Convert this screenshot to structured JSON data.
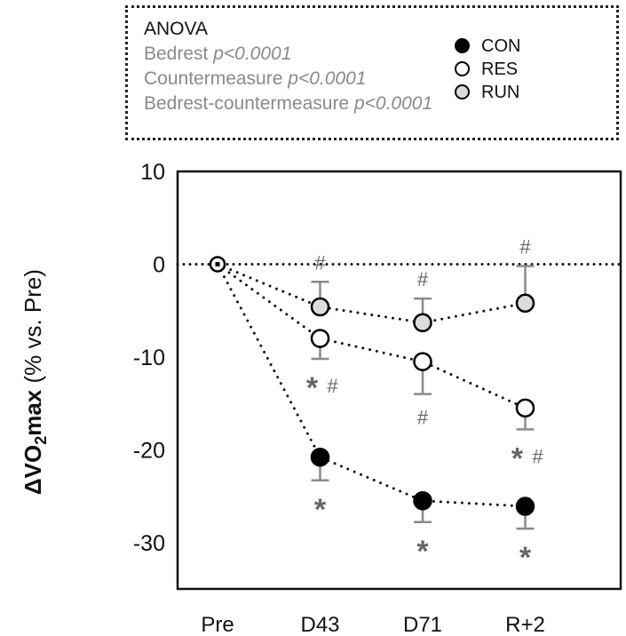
{
  "chart_data": {
    "type": "line",
    "title": "",
    "xlabel": "",
    "ylabel_bold": "ΔVO2max",
    "ylabel_rest": "(% vs. Pre)",
    "ylim": [
      -35,
      10
    ],
    "yticks": [
      10,
      0,
      -10,
      -20,
      -30
    ],
    "categories": [
      "Pre",
      "D43",
      "D71",
      "R+2"
    ],
    "grid": false,
    "reference_line": 0,
    "legend_position": "top-right",
    "series": [
      {
        "name": "CON",
        "fill": "#000000",
        "values": [
          0,
          -20.8,
          -25.5,
          -26.1
        ],
        "err_low": [
          0,
          -23.3,
          -27.8,
          -28.5
        ],
        "err_high": [
          null,
          null,
          null,
          null
        ],
        "annotations": [
          [],
          [
            "*"
          ],
          [
            "*"
          ],
          [
            "*"
          ]
        ]
      },
      {
        "name": "RES",
        "fill": "#ffffff",
        "values": [
          0,
          -8.0,
          -10.5,
          -15.5
        ],
        "err_low": [
          0,
          -10.2,
          -14.0,
          -17.8
        ],
        "err_high": [
          null,
          null,
          null,
          null
        ],
        "annotations": [
          [],
          [
            "*",
            "#"
          ],
          [
            "#"
          ],
          [
            "*",
            "#"
          ]
        ]
      },
      {
        "name": "RUN",
        "fill": "#dcdcdc",
        "values": [
          0,
          -4.6,
          -6.3,
          -4.2
        ],
        "err_low": [
          null,
          null,
          null,
          null
        ],
        "err_high": [
          0,
          -1.9,
          -3.7,
          -0.2
        ],
        "annotations": [
          [],
          [
            "#"
          ],
          [
            "#"
          ],
          [
            "#"
          ]
        ]
      }
    ],
    "anova": {
      "title": "ANOVA",
      "rows": [
        {
          "label": "Bedrest",
          "p": "p<0.0001"
        },
        {
          "label": "Countermeasure",
          "p": "p<0.0001"
        },
        {
          "label": "Bedrest-countermeasure",
          "p": "p<0.0001"
        }
      ]
    }
  }
}
